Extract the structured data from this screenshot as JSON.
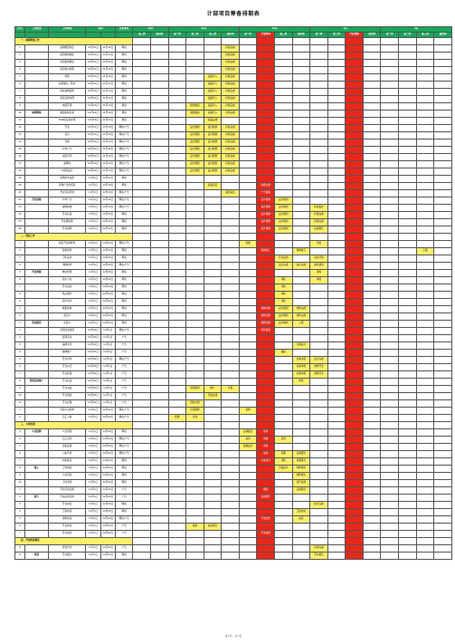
{
  "title": "计部项目筹备排期表",
  "headers": {
    "col_no": "序号",
    "col_category": "工作类型",
    "col_item": "工作事项",
    "col_time": "时间",
    "col_owner": "负责单位",
    "section_label": "时间节点",
    "months": [
      "10月",
      "11月",
      "12月",
      "1月",
      "2月"
    ],
    "weeks": [
      "第三周",
      "第四周",
      "第一周",
      "第二周",
      "第三周",
      "第四周",
      "第一周",
      "开业时间",
      "第三周",
      "第四周",
      "第一周",
      "第二周",
      "开业准备",
      "第四周",
      "第一周",
      "第二周",
      "第三周",
      "第四周"
    ],
    "milestone_label": "开业时间"
  },
  "colors": {
    "header_green": "#18a85a",
    "gantt_yellow": "#fdf06c",
    "light_green": "#cfe9d8",
    "milestone_red": "#e8271b"
  },
  "sections": [
    {
      "label": "一、前期筹备工作",
      "time": "持续时间"
    },
    {
      "label": "二、营运工作"
    },
    {
      "label": "三、人员培训"
    },
    {
      "label": "四、开业阶段事宜"
    }
  ],
  "rows": [
    {
      "no": "1",
      "item": "装修图纸审定",
      "start": "10月10日",
      "end": "11月10日",
      "owner": "网商",
      "cells": {
        "5": "持续完成"
      }
    },
    {
      "no": "2",
      "item": "项目规划确定",
      "start": "10月10日",
      "end": "11月10日",
      "owner": "网商",
      "cells": {
        "5": "持续完成"
      }
    },
    {
      "no": "3",
      "item": "项目装修确定",
      "start": "10月10日",
      "end": "11月10日",
      "owner": "网商",
      "cells": {
        "5": "持续完成"
      }
    },
    {
      "no": "4",
      "item": "项目各户招租",
      "start": "10月10日",
      "end": "11月10日",
      "owner": "网商",
      "cells": {
        "5": "持续完成"
      }
    },
    {
      "no": "5",
      "item": "招租",
      "start": "10月10日",
      "end": "11月10日",
      "owner": "网商",
      "cells": {
        "4": "商品导入",
        "5": "持续完成"
      }
    },
    {
      "no": "6",
      "item": "商机确认、签约",
      "start": "10月10日",
      "end": "11月10日",
      "owner": "网商",
      "cells": {
        "4": "商品导入",
        "5": "持续完成"
      }
    },
    {
      "no": "7",
      "item": "商家进场装修",
      "start": "10月10日",
      "end": "11月10日",
      "owner": "网商",
      "cells": {
        "4": "商品导入",
        "5": "持续完成"
      }
    },
    {
      "no": "8",
      "item": "商家证照办理",
      "start": "10月10日",
      "end": "11月10日",
      "owner": "网商",
      "cells": {
        "4": "商品导入",
        "5": "持续完成"
      }
    },
    {
      "no": "9",
      "item": "电话开通",
      "start": "10月10日",
      "end": "11月10日",
      "owner": "网商",
      "cells": {
        "3": "规划组织",
        "4": "商品导入",
        "5": "持续完成"
      }
    },
    {
      "no": "10",
      "item": "收银系统安装",
      "start": "10月10日",
      "end": "11月10日",
      "owner": "网商",
      "cells": {
        "3": "规划组织",
        "4": "商品导入",
        "5": "持续完成"
      }
    },
    {
      "no": "11",
      "item": "POS机标签办理",
      "start": "10月10日",
      "end": "11月10日",
      "owner": "网商",
      "cells": {
        "4": "商品完成"
      }
    },
    {
      "no": "12",
      "item": "开业",
      "start": "10月10日",
      "end": "11月10日",
      "owner": "网商/广告",
      "cells": {
        "3": "设计规划",
        "4": "设计规划",
        "5": "持续完成"
      }
    },
    {
      "no": "13",
      "item": "道具",
      "start": "10月10日",
      "end": "11月10日",
      "owner": "网商/广告",
      "cells": {
        "3": "设计规划",
        "4": "设计规划",
        "5": "持续完成"
      }
    },
    {
      "no": "14",
      "item": "导视",
      "start": "10月10日",
      "end": "11月10日",
      "owner": "网商/广告",
      "cells": {
        "3": "设计规划",
        "4": "设计规划",
        "5": "持续完成"
      }
    },
    {
      "no": "15",
      "item": "户外广告",
      "start": "10月10日",
      "end": "11月10日",
      "owner": "网商/广告",
      "cells": {
        "3": "设计规划",
        "4": "设计规划",
        "5": "持续完成"
      }
    },
    {
      "no": "16",
      "item": "项目宣传",
      "start": "10月10日",
      "end": "11月10日",
      "owner": "网商/广告",
      "cells": {
        "3": "设计规划",
        "4": "设计规划",
        "5": "持续完成"
      }
    },
    {
      "no": "17",
      "item": "品牌墙",
      "start": "10月10日",
      "end": "11月10日",
      "owner": "网商/广告",
      "cells": {
        "3": "设计规划",
        "4": "设计规划",
        "5": "持续完成"
      }
    },
    {
      "no": "18",
      "item": "VI视觉设计",
      "start": "10月10日",
      "end": "11月10日",
      "owner": "网商/广告",
      "cells": {
        "3": "设计规划",
        "4": "设计规划",
        "5": "持续完成"
      }
    },
    {
      "no": "19",
      "item": "商场停车设置",
      "start": "11月1日",
      "end": "12月10日",
      "owner": "网商",
      "cells": {}
    },
    {
      "no": "20",
      "item": "商场广告位招商",
      "start": "11月1日",
      "end": "12月10日",
      "owner": "网商",
      "cells": {
        "4": "商品完善",
        "7": "商场完整"
      }
    },
    {
      "no": "21",
      "item": "开业活动筹划",
      "start": "11月1日",
      "end": "12月10日",
      "owner": "网商/广告",
      "cells": {
        "5": "策划动员",
        "7": "广告跟进"
      }
    },
    {
      "no": "22",
      "item": "户外广告",
      "start": "11月1日",
      "end": "12月10日",
      "owner": "网商/广告",
      "cells": {
        "7": "设计规划",
        "8": "设计规划"
      }
    },
    {
      "no": "23",
      "item": "媒体投放",
      "start": "11月1日",
      "end": "12月10日",
      "owner": "网商/广告",
      "cells": {
        "7": "设计规划",
        "8": "设计规划",
        "10": "持续发布"
      }
    },
    {
      "no": "24",
      "item": "开业礼品",
      "start": "11月1日",
      "end": "12月10日",
      "owner": "网商",
      "cells": {
        "7": "设计规划",
        "8": "设计规划",
        "10": "持续完成"
      }
    },
    {
      "no": "25",
      "item": "开业邀请函",
      "start": "11月1日",
      "end": "12月10日",
      "owner": "网商",
      "cells": {
        "7": "设计规划",
        "8": "设计规划",
        "10": "持续完成"
      }
    },
    {
      "no": "26",
      "item": "开业资料",
      "start": "11月1日",
      "end": "12月10日",
      "owner": "网商",
      "cells": {
        "7": "设计规划",
        "8": "设计规划",
        "10": "完成报告"
      }
    },
    {
      "no": "1",
      "item": "商家开业前检查",
      "start": "11月1日",
      "end": "12月20日",
      "owner": "网商/广告",
      "cells": {
        "6": "验收",
        "10": "考核"
      }
    },
    {
      "no": "2",
      "item": "装修监管",
      "start": "11月1日",
      "end": "12月20日",
      "owner": "网商",
      "cells": {
        "7": "现场施工",
        "9": "现场施工",
        "16": "上报"
      }
    },
    {
      "no": "3",
      "item": "卫生清洁",
      "start": "11月1日",
      "end": "12月20日",
      "owner": "网商",
      "cells": {
        "8": "开业清洁",
        "10": "清洁计划"
      }
    },
    {
      "no": "4",
      "item": "消防检查",
      "start": "11月1日",
      "end": "12月20日",
      "owner": "网商/广告",
      "cells": {
        "8": "设计完成",
        "9": "设计完成",
        "10": "绿色通道"
      }
    },
    {
      "no": "5",
      "item": "物业管理",
      "start": "11月1日",
      "end": "12月20日",
      "owner": "网商",
      "cells": {
        "10": "审核"
      }
    },
    {
      "no": "6",
      "item": "商户入驻",
      "start": "11月1日",
      "end": "12月20日",
      "owner": "网商",
      "cells": {
        "8": "审核",
        "10": "审核"
      }
    },
    {
      "no": "7",
      "item": "开业演练",
      "start": "11月1日",
      "end": "12月20日",
      "owner": "网商",
      "cells": {
        "8": "审核"
      }
    },
    {
      "no": "8",
      "item": "售后服务",
      "start": "11月1日",
      "end": "12月20日",
      "owner": "网商",
      "cells": {
        "8": "审核"
      }
    },
    {
      "no": "9",
      "item": "商户培训",
      "start": "11月1日",
      "end": "12月20日",
      "owner": "网商",
      "cells": {
        "8": "审核"
      }
    },
    {
      "no": "1",
      "item": "收银系统",
      "start": "12月1日",
      "end": "12月20日",
      "owner": "网商",
      "cells": {
        "7": "现场实施",
        "8": "设计规划",
        "9": "制作完成"
      }
    },
    {
      "no": "2",
      "item": "会员卡",
      "start": "12月1日",
      "end": "12月20日",
      "owner": "网商",
      "cells": {
        "7": "现场实施",
        "8": "设计规划",
        "9": "制作完成"
      }
    },
    {
      "no": "3",
      "item": "礼品卡",
      "start": "12月1日",
      "end": "12月20日",
      "owner": "网商",
      "cells": {
        "7": "现场实施",
        "8": "设计规划",
        "9": "上报"
      }
    },
    {
      "no": "1",
      "item": "营销活动策划",
      "start": "10月20日",
      "end": "12月1日",
      "owner": "网商/广告",
      "cells": {
        "7": "持续跟进"
      }
    },
    {
      "no": "2",
      "item": "促销活动",
      "start": "10月20日",
      "end": "12月1日",
      "owner": "广告",
      "cells": {}
    },
    {
      "no": "3",
      "item": "品牌宣传",
      "start": "10月20日",
      "end": "12月1日",
      "owner": "广告",
      "cells": {
        "9": "导视设计"
      }
    },
    {
      "no": "4",
      "item": "媒体推广",
      "start": "10月20日",
      "end": "12月1日",
      "owner": "广告",
      "cells": {
        "8": "跟踪"
      }
    },
    {
      "no": "5",
      "item": "开业宣传",
      "start": "10月20日",
      "end": "12月1日",
      "owner": "网商/广告",
      "cells": {
        "9": "文案审核",
        "10": "设计完成"
      }
    },
    {
      "no": "6",
      "item": "开业仪式",
      "start": "10月20日",
      "end": "12月1日",
      "owner": "广告",
      "cells": {
        "9": "文案审核",
        "10": "制作开业"
      }
    },
    {
      "no": "7",
      "item": "开业庆典",
      "start": "10月20日",
      "end": "12月1日",
      "owner": "广告",
      "cells": {
        "9": "文案审核",
        "10": "制作开业"
      }
    },
    {
      "no": "8",
      "item": "开业礼品",
      "start": "10月20日",
      "end": "12月1日",
      "owner": "广告",
      "cells": {
        "9": "审核"
      }
    },
    {
      "no": "9",
      "item": "开业派发",
      "start": "10月20日",
      "end": "12月1日",
      "owner": "广告",
      "cells": {
        "3": "前期筹划",
        "4": "推广",
        "5": "考核"
      }
    },
    {
      "no": "10",
      "item": "开业酒会",
      "start": "10月20日",
      "end": "12月1日",
      "owner": "广告",
      "cells": {
        "4": "活动完成"
      }
    },
    {
      "no": "11",
      "item": "开业庆典",
      "start": "10月20日",
      "end": "12月1日",
      "owner": "广告",
      "cells": {
        "3": "预热计划"
      }
    },
    {
      "no": "1",
      "item": "营运人员招聘",
      "start": "11月1日",
      "end": "12月20日",
      "owner": "网商/广告",
      "cells": {
        "3": "全面招聘",
        "6": "招聘"
      }
    },
    {
      "no": "2",
      "item": "员工入职",
      "start": "11月1日",
      "end": "12月20日",
      "owner": "网商/广告",
      "cells": {
        "2": "招聘",
        "3": "培训"
      }
    },
    {
      "no": "3",
      "item": "人员管理",
      "start": "11月1日",
      "end": "12月20日",
      "owner": "网商",
      "cells": {
        "6": "完成报告",
        "7": "复审"
      }
    },
    {
      "no": "4",
      "item": "员工培训",
      "start": "11月1日",
      "end": "12月20日",
      "owner": "网商/广告",
      "cells": {
        "6": "复审",
        "7": "签署",
        "8": "培训"
      }
    },
    {
      "no": "5",
      "item": "班组设置",
      "start": "11月1日",
      "end": "12月20日",
      "owner": "网商/广告",
      "cells": {
        "6": "绩效设计",
        "7": "审核"
      }
    },
    {
      "no": "6",
      "item": "入职手续",
      "start": "11月1日",
      "end": "12月20日",
      "owner": "网商/广告",
      "cells": {
        "7": "复审",
        "8": "签署",
        "9": "完成报告"
      }
    },
    {
      "no": "7",
      "item": "岗位职责",
      "start": "11月1日",
      "end": "12月20日",
      "owner": "网商",
      "cells": {
        "7": "方案设计",
        "8": "审核",
        "9": "签署报告"
      }
    },
    {
      "no": "8",
      "item": "工作制度",
      "start": "11月1日",
      "end": "12月20日",
      "owner": "网商",
      "cells": {
        "8": "方案设计",
        "9": "制作报告"
      }
    },
    {
      "no": "9",
      "item": "人员培训",
      "start": "11月1日",
      "end": "12月20日",
      "owner": "网商",
      "cells": {
        "9": "制作报告"
      }
    },
    {
      "no": "10",
      "item": "上岗考核",
      "start": "11月1日",
      "end": "12月20日",
      "owner": "网商",
      "cells": {
        "9": "执行完成"
      }
    },
    {
      "no": "1",
      "item": "开业活动实施",
      "start": "11月1日",
      "end": "12月20日",
      "owner": "广告",
      "cells": {
        "7": "跟踪",
        "9": "完成报告"
      }
    },
    {
      "no": "2",
      "item": "开业后续安排",
      "start": "11月1日",
      "end": "12月20日",
      "owner": "广告",
      "cells": {
        "7": "完成报告"
      }
    },
    {
      "no": "3",
      "item": "开业总结",
      "start": "11月1日",
      "end": "12月20日",
      "owner": "网商",
      "cells": {
        "10": "执行完成"
      }
    },
    {
      "no": "4",
      "item": "工程交接",
      "start": "11月1日",
      "end": "12月20日",
      "owner": "网商",
      "cells": {
        "9": "工程交接"
      }
    },
    {
      "no": "5",
      "item": "资料交接",
      "start": "11月1日",
      "end": "12月20日",
      "owner": "网商/广告",
      "cells": {
        "7": "开业文件",
        "9": "总结"
      }
    },
    {
      "no": "6",
      "item": "开业复盘",
      "start": "11月1日",
      "end": "12月20日",
      "owner": "广告",
      "cells": {
        "3": "策划",
        "4": "总结报告"
      }
    },
    {
      "no": "7",
      "item": "开业总结",
      "start": "11月1日",
      "end": "12月20日",
      "owner": "广告",
      "cells": {
        "7": "开业总结"
      }
    },
    {
      "no": "8",
      "item": "经营计划",
      "start": "11月1日",
      "end": "12月20日",
      "owner": "广告",
      "cells": {
        "10": "持续完成"
      }
    },
    {
      "no": "9",
      "item": "开业报告",
      "start": "11月1日",
      "end": "12月20日",
      "owner": "网商",
      "cells": {
        "10": "开业报告"
      }
    }
  ],
  "groups": [
    {
      "label": "前期筹备",
      "at": 9
    },
    {
      "label": "开业准备",
      "at": 21
    },
    {
      "label": "开业筹备",
      "at": 30
    },
    {
      "label": "营运配套",
      "at": 37
    },
    {
      "label": "营销活动推广",
      "at": 45
    },
    {
      "label": "人员招聘",
      "at": 51
    },
    {
      "label": "线上",
      "at": 56
    },
    {
      "label": "线下",
      "at": 60
    },
    {
      "label": "培训",
      "at": 67
    }
  ],
  "footer": "第1页，共1页"
}
